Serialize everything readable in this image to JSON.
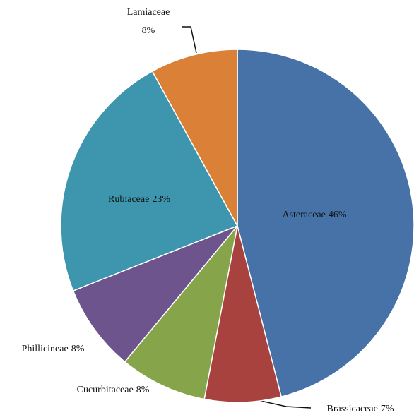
{
  "chart_data": {
    "type": "pie",
    "categories": [
      "Asteraceae",
      "Brassicaceae",
      "Cucurbitaceae",
      "Phillicineae",
      "Rubiaceae",
      "Lamiaceae"
    ],
    "values": [
      46,
      7,
      8,
      8,
      23,
      8
    ],
    "value_labels": [
      "46%",
      "7%",
      "8%",
      "8%",
      "23%",
      "8%"
    ],
    "colors": [
      "#4672a8",
      "#a8423f",
      "#86a44a",
      "#6e548d",
      "#3d96ae",
      "#da8137"
    ]
  }
}
